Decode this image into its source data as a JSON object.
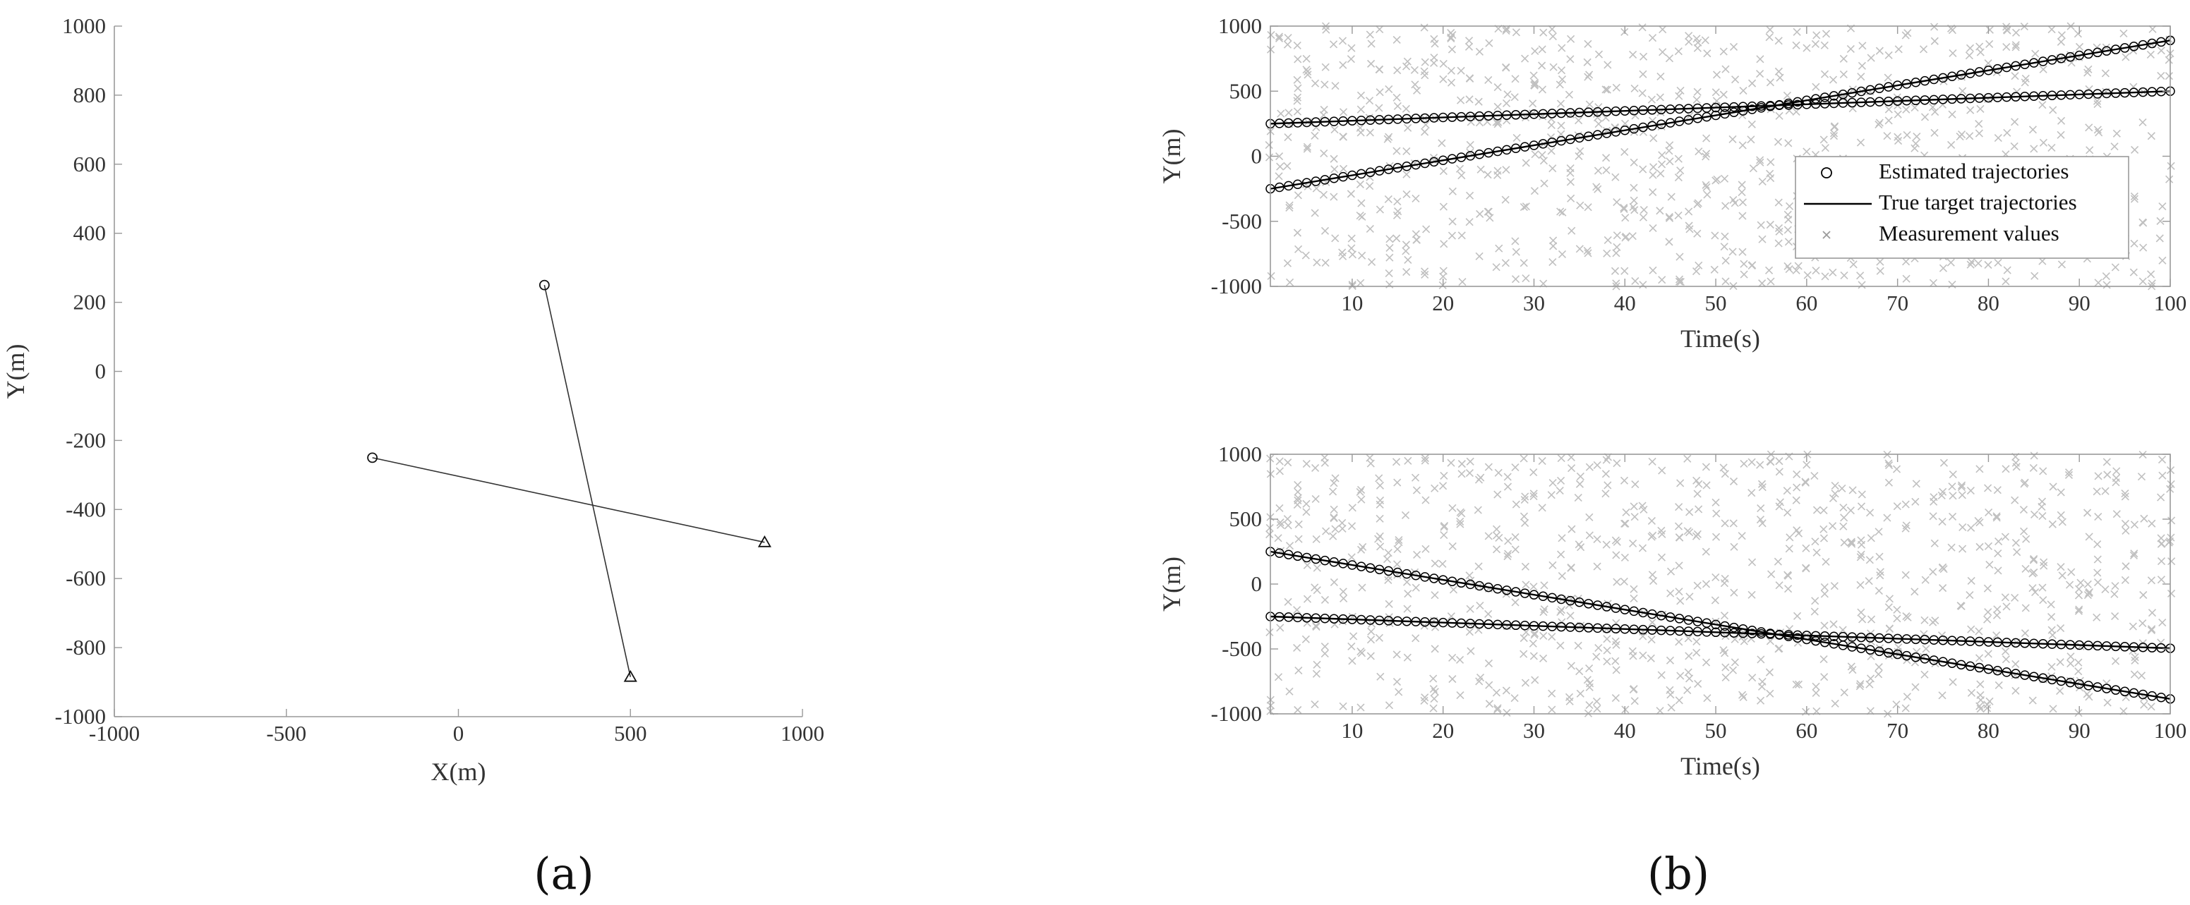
{
  "colors": {
    "axis": "#999999",
    "text": "#333333",
    "trajectory": "#000000",
    "measurement": "#c0c0c0"
  },
  "panel_a_label": "(a)",
  "panel_b_label": "(b)",
  "chart_data": [
    {
      "type": "line",
      "id": "a",
      "xlabel": "X(m)",
      "ylabel": "Y(m)",
      "xlim": [
        -1000,
        1000
      ],
      "ylim": [
        -1000,
        1000
      ],
      "xticks": [
        -1000,
        -500,
        0,
        500,
        1000
      ],
      "yticks": [
        1000,
        800,
        600,
        400,
        200,
        0,
        -200,
        -400,
        -600,
        -800,
        -1000
      ],
      "grid": false,
      "series": [
        {
          "start": [
            250,
            250
          ],
          "end": [
            500,
            -885
          ],
          "start_marker": "circle",
          "end_marker": "triangle"
        },
        {
          "start": [
            -250,
            -250
          ],
          "end": [
            890,
            -495
          ],
          "start_marker": "circle",
          "end_marker": "triangle"
        }
      ]
    },
    {
      "type": "line",
      "id": "b1",
      "xlabel": "Time(s)",
      "ylabel": "Y(m)",
      "xlim": [
        1,
        100
      ],
      "ylim": [
        -1000,
        1000
      ],
      "xticks": [
        10,
        20,
        30,
        40,
        50,
        60,
        70,
        80,
        90,
        100
      ],
      "yticks": [
        1000,
        500,
        0,
        -500,
        -1000
      ],
      "grid": false,
      "legend_position": "lower-right",
      "legend": [
        "Estimated trajectories",
        "True target trajectories",
        "Measurement values"
      ],
      "series": [
        {
          "start": [
            1,
            250
          ],
          "end": [
            100,
            500
          ]
        },
        {
          "start": [
            1,
            -250
          ],
          "end": [
            100,
            890
          ]
        }
      ],
      "clutter": "dense random measurements across the full range"
    },
    {
      "type": "line",
      "id": "b2",
      "xlabel": "Time(s)",
      "ylabel": "Y(m)",
      "xlim": [
        1,
        100
      ],
      "ylim": [
        -1000,
        1000
      ],
      "xticks": [
        10,
        20,
        30,
        40,
        50,
        60,
        70,
        80,
        90,
        100
      ],
      "yticks": [
        1000,
        500,
        0,
        -500,
        -1000
      ],
      "grid": false,
      "series": [
        {
          "start": [
            1,
            250
          ],
          "end": [
            100,
            -885
          ]
        },
        {
          "start": [
            1,
            -250
          ],
          "end": [
            100,
            -495
          ]
        }
      ],
      "clutter": "dense random measurements across the full range"
    }
  ]
}
